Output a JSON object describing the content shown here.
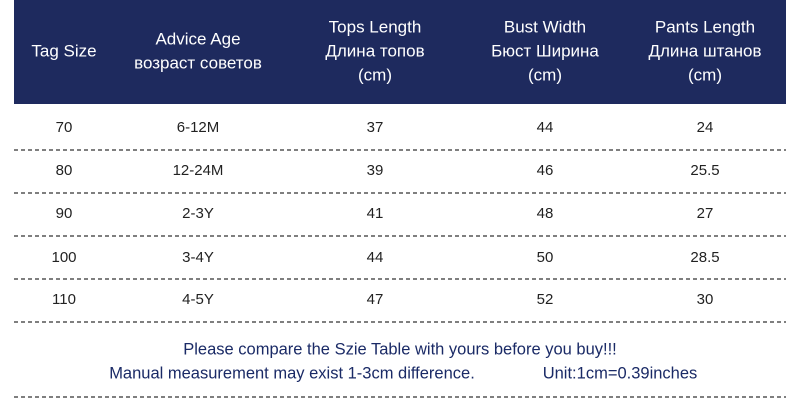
{
  "table": {
    "header": [
      [
        "Tag Size"
      ],
      [
        "Advice Age",
        "возраст советов"
      ],
      [
        "Tops Length",
        "Длина топов",
        "(cm)"
      ],
      [
        "Bust Width",
        "Бюст Ширина",
        "(cm)"
      ],
      [
        "Pants Length",
        "Длина штанов",
        "(cm)"
      ]
    ],
    "rows": [
      [
        70,
        "6-12M",
        37,
        44,
        24
      ],
      [
        80,
        "12-24M",
        39,
        46,
        25.5
      ],
      [
        90,
        "2-3Y",
        41,
        48,
        27
      ],
      [
        100,
        "3-4Y",
        44,
        50,
        28.5
      ],
      [
        110,
        "4-5Y",
        47,
        52,
        30
      ]
    ]
  },
  "footer": {
    "line1": "Please compare the Szie Table with yours before you buy!!!",
    "line2": "Manual measurement may exist 1-3cm difference.",
    "unit": "Unit:1cm=0.39inches"
  }
}
